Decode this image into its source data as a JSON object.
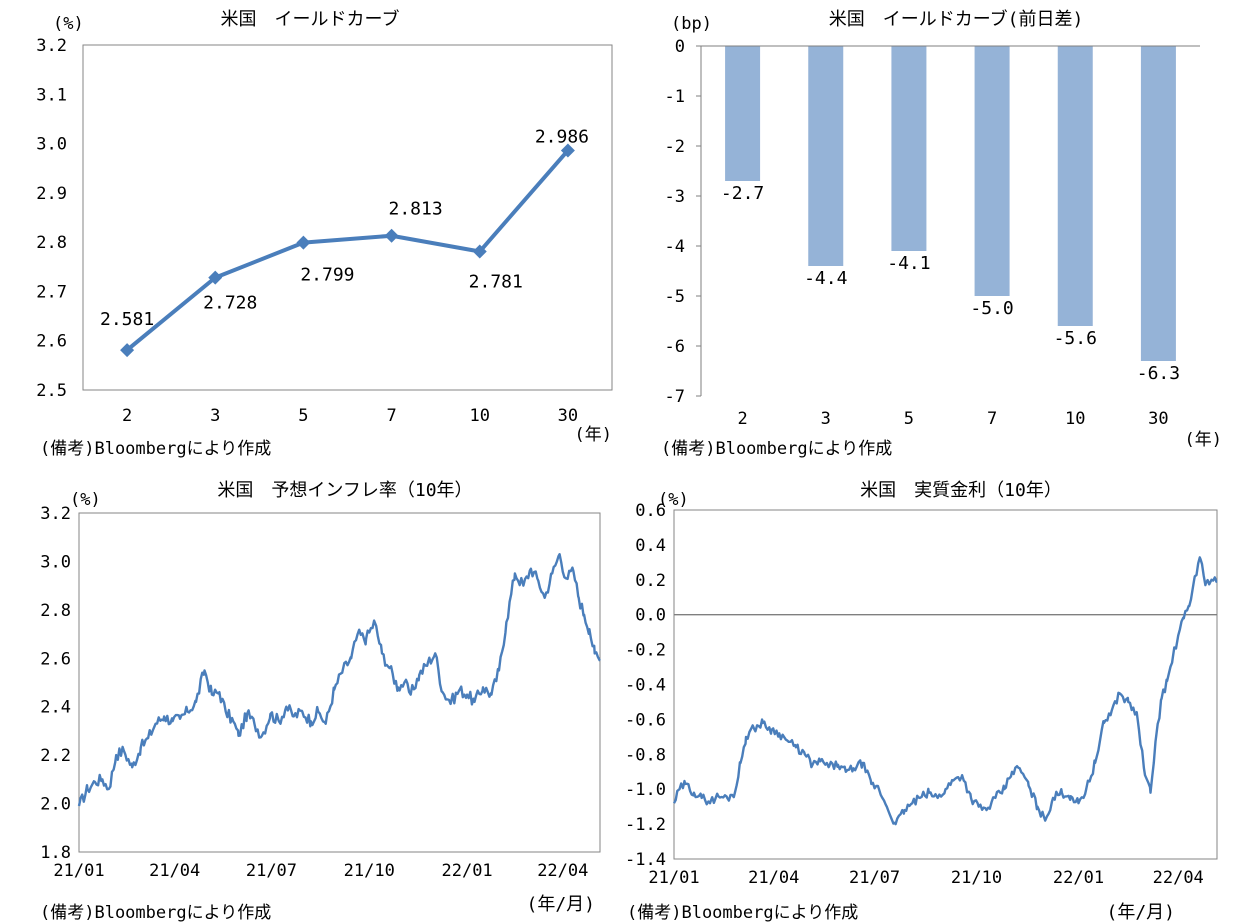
{
  "colors": {
    "line": "#4a7ebb",
    "bar": "#95b3d7",
    "axis": "#7f7f7f",
    "frame": "#868686"
  },
  "chart_data": [
    {
      "type": "line",
      "title": "米国　イールドカーブ",
      "unit_label": "(%)",
      "x_unit_label": "(年)",
      "source": "(備考)Bloombergにより作成",
      "categories": [
        "2",
        "3",
        "5",
        "7",
        "10",
        "30"
      ],
      "values": [
        2.581,
        2.728,
        2.799,
        2.813,
        2.781,
        2.986
      ],
      "data_labels": [
        "2.581",
        "2.728",
        "2.799",
        "2.813",
        "2.781",
        "2.986"
      ],
      "ylim": [
        2.5,
        3.2
      ],
      "yticks": [
        "3.2",
        "3.1",
        "3.0",
        "2.9",
        "2.8",
        "2.7",
        "2.6",
        "2.5"
      ],
      "marker": "diamond"
    },
    {
      "type": "bar",
      "title": "米国　イールドカーブ(前日差)",
      "unit_label": "(bp)",
      "x_unit_label": "(年)",
      "source": "(備考)Bloombergにより作成",
      "categories": [
        "2",
        "3",
        "5",
        "7",
        "10",
        "30"
      ],
      "values": [
        -2.7,
        -4.4,
        -4.1,
        -5.0,
        -5.6,
        -6.3
      ],
      "data_labels": [
        "-2.7",
        "-4.4",
        "-4.1",
        "-5.0",
        "-5.6",
        "-6.3"
      ],
      "ylim": [
        -7,
        0
      ],
      "yticks": [
        "0",
        "-1",
        "-2",
        "-3",
        "-4",
        "-5",
        "-6",
        "-7"
      ]
    },
    {
      "type": "line",
      "title": "米国　予想インフレ率（10年）",
      "unit_label": "(%)",
      "x_unit_label": "(年/月)",
      "source": "(備考)Bloombergにより作成",
      "x_ticks": [
        "21/01",
        "21/04",
        "21/07",
        "21/10",
        "22/01",
        "22/04"
      ],
      "x_range_days": [
        0,
        490
      ],
      "x_tick_days": [
        0,
        90,
        181,
        273,
        365,
        455
      ],
      "ylim": [
        1.8,
        3.2
      ],
      "yticks": [
        "3.2",
        "3.0",
        "2.8",
        "2.6",
        "2.4",
        "2.2",
        "2.0",
        "1.8"
      ],
      "series_days": [
        0,
        8,
        15,
        22,
        28,
        35,
        42,
        50,
        58,
        65,
        72,
        80,
        88,
        95,
        102,
        110,
        118,
        125,
        132,
        138,
        145,
        150,
        158,
        165,
        172,
        180,
        188,
        195,
        202,
        210,
        218,
        225,
        232,
        240,
        248,
        256,
        262,
        270,
        278,
        285,
        292,
        300,
        306,
        312,
        320,
        328,
        335,
        342,
        350,
        358,
        365,
        372,
        380,
        388,
        395,
        402,
        410,
        418,
        425,
        432,
        438,
        445,
        452,
        458,
        465,
        470,
        475,
        480,
        485,
        490
      ],
      "series_values": [
        1.99,
        2.06,
        2.09,
        2.1,
        2.06,
        2.2,
        2.22,
        2.15,
        2.23,
        2.27,
        2.33,
        2.36,
        2.34,
        2.35,
        2.38,
        2.42,
        2.55,
        2.45,
        2.46,
        2.38,
        2.34,
        2.28,
        2.37,
        2.33,
        2.28,
        2.37,
        2.34,
        2.4,
        2.36,
        2.38,
        2.34,
        2.38,
        2.33,
        2.47,
        2.55,
        2.6,
        2.7,
        2.68,
        2.75,
        2.62,
        2.56,
        2.48,
        2.5,
        2.45,
        2.53,
        2.58,
        2.62,
        2.46,
        2.42,
        2.47,
        2.45,
        2.42,
        2.48,
        2.45,
        2.55,
        2.75,
        2.95,
        2.9,
        2.97,
        2.92,
        2.85,
        2.95,
        3.03,
        2.93,
        2.96,
        2.85,
        2.78,
        2.72,
        2.62,
        2.59
      ]
    },
    {
      "type": "line",
      "title": "米国　実質金利（10年）",
      "unit_label": "(%)",
      "x_unit_label": "(年/月)",
      "source": "(備考)Bloombergにより作成",
      "x_ticks": [
        "21/01",
        "21/04",
        "21/07",
        "21/10",
        "22/01",
        "22/04"
      ],
      "x_range_days": [
        0,
        490
      ],
      "x_tick_days": [
        0,
        90,
        181,
        273,
        365,
        455
      ],
      "ylim": [
        -1.4,
        0.6
      ],
      "yticks": [
        "0.6",
        "0.4",
        "0.2",
        "0.0",
        "-0.2",
        "-0.4",
        "-0.6",
        "-0.8",
        "-1.0",
        "-1.2",
        "-1.4"
      ],
      "reference_line": 0.0,
      "series_days": [
        0,
        5,
        10,
        18,
        25,
        33,
        40,
        48,
        55,
        60,
        65,
        72,
        80,
        88,
        95,
        102,
        110,
        118,
        125,
        132,
        140,
        148,
        155,
        162,
        170,
        178,
        185,
        192,
        200,
        208,
        215,
        222,
        230,
        238,
        245,
        252,
        260,
        268,
        275,
        282,
        290,
        298,
        305,
        312,
        320,
        328,
        335,
        342,
        350,
        358,
        365,
        372,
        380,
        388,
        395,
        402,
        410,
        418,
        425,
        430,
        435,
        440,
        445,
        450,
        455,
        460,
        465,
        470,
        475,
        480,
        485,
        490
      ],
      "series_values": [
        -1.08,
        -1.0,
        -0.97,
        -1.02,
        -1.05,
        -1.07,
        -1.04,
        -1.05,
        -1.02,
        -0.85,
        -0.7,
        -0.65,
        -0.62,
        -0.66,
        -0.68,
        -0.72,
        -0.76,
        -0.8,
        -0.86,
        -0.84,
        -0.87,
        -0.86,
        -0.9,
        -0.88,
        -0.85,
        -0.97,
        -1.0,
        -1.1,
        -1.2,
        -1.12,
        -1.08,
        -1.05,
        -1.02,
        -1.05,
        -1.0,
        -0.95,
        -0.92,
        -1.05,
        -1.1,
        -1.12,
        -1.05,
        -1.0,
        -0.9,
        -0.88,
        -0.98,
        -1.1,
        -1.18,
        -1.05,
        -1.02,
        -1.04,
        -1.08,
        -1.0,
        -0.85,
        -0.62,
        -0.55,
        -0.45,
        -0.5,
        -0.58,
        -0.92,
        -1.02,
        -0.7,
        -0.48,
        -0.38,
        -0.25,
        -0.12,
        -0.02,
        0.05,
        0.22,
        0.32,
        0.18,
        0.2,
        0.19
      ]
    }
  ]
}
